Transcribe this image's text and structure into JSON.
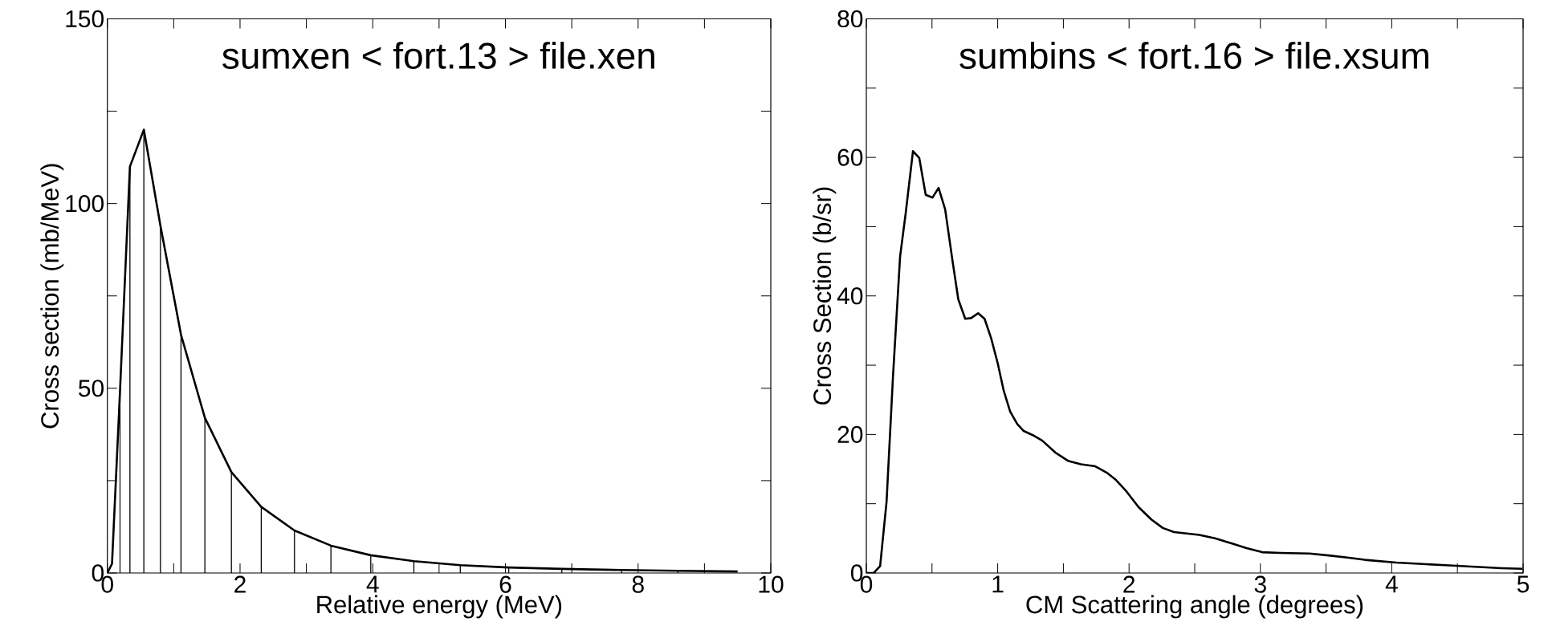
{
  "chart_data": [
    {
      "type": "line",
      "title": "sumxen < fort.13 > file.xen",
      "xlabel": "Relative energy (MeV)",
      "ylabel": "Cross section (mb/MeV)",
      "color": "#000000",
      "x": [
        0,
        0.07,
        0.19,
        0.34,
        0.55,
        0.8,
        1.11,
        1.47,
        1.87,
        2.32,
        2.82,
        3.37,
        3.97,
        4.62,
        5.32,
        6.05,
        6.85,
        7.75,
        8.6,
        9.5
      ],
      "series": [
        {
          "type": "line",
          "values": [
            0,
            2.5,
            49,
            110,
            120,
            94,
            64.5,
            42,
            27.3,
            17.9,
            11.5,
            7.4,
            4.8,
            3.2,
            2.1,
            1.5,
            1.1,
            0.8,
            0.6,
            0.4
          ]
        },
        {
          "type": "bar",
          "values": [
            null,
            null,
            49,
            110,
            120,
            94,
            64.5,
            42,
            27.3,
            17.9,
            11.5,
            7.4,
            4.8,
            3.2,
            2.1,
            1.5,
            1.1,
            0.8,
            0.6,
            null
          ]
        }
      ],
      "xlim": [
        0,
        10
      ],
      "ylim": [
        0,
        150
      ],
      "xticks": [
        0,
        {
          "value": 1,
          "label": null
        },
        2,
        {
          "value": 3,
          "label": null
        },
        4,
        {
          "value": 5,
          "label": null
        },
        6,
        {
          "value": 7,
          "label": null
        },
        8,
        {
          "value": 9,
          "label": null
        },
        10
      ],
      "yticks": [
        0,
        {
          "value": 25,
          "label": null
        },
        50,
        {
          "value": 75,
          "label": null
        },
        100,
        {
          "value": 125,
          "label": null
        },
        150
      ]
    },
    {
      "type": "line",
      "title": "sumbins < fort.16 > file.xsum",
      "xlabel": "CM Scattering angle (degrees)",
      "ylabel": "Cross Section (b/sr)",
      "color": "#000000",
      "x": [
        0,
        0.056,
        0.105,
        0.154,
        0.203,
        0.257,
        0.3,
        0.355,
        0.403,
        0.452,
        0.504,
        0.55,
        0.6,
        0.655,
        0.7,
        0.753,
        0.797,
        0.851,
        0.9,
        0.95,
        1.0,
        1.046,
        1.095,
        1.149,
        1.198,
        1.267,
        1.34,
        1.438,
        1.535,
        1.633,
        1.743,
        1.829,
        1.902,
        1.975,
        2.073,
        2.171,
        2.257,
        2.342,
        2.534,
        2.654,
        2.794,
        2.894,
        3.014,
        3.154,
        3.374,
        3.534,
        3.674,
        3.794,
        4.034,
        4.234,
        4.434,
        4.634,
        4.834,
        4.994
      ],
      "values": [
        0,
        0,
        1.0,
        10.3,
        28.4,
        45.7,
        52,
        60.9,
        59.9,
        54.6,
        54.2,
        55.6,
        52.5,
        45.2,
        39.5,
        36.7,
        36.8,
        37.5,
        36.7,
        33.9,
        30.3,
        26.3,
        23.3,
        21.5,
        20.5,
        19.9,
        19.1,
        17.4,
        16.2,
        15.7,
        15.4,
        14.5,
        13.4,
        11.9,
        9.5,
        7.7,
        6.5,
        5.9,
        5.5,
        5.0,
        4.2,
        3.6,
        3.0,
        2.9,
        2.8,
        2.5,
        2.2,
        1.9,
        1.5,
        1.3,
        1.1,
        0.9,
        0.7,
        0.6
      ],
      "xlim": [
        0,
        5
      ],
      "ylim": [
        0,
        80
      ],
      "xticks": [
        0,
        {
          "value": 0.5,
          "label": null
        },
        1,
        {
          "value": 1.5,
          "label": null
        },
        2,
        {
          "value": 2.5,
          "label": null
        },
        3,
        {
          "value": 3.5,
          "label": null
        },
        4,
        {
          "value": 4.5,
          "label": null
        },
        5
      ],
      "yticks": [
        0,
        {
          "value": 10,
          "label": null
        },
        20,
        {
          "value": 30,
          "label": null
        },
        40,
        {
          "value": 50,
          "label": null
        },
        60,
        {
          "value": 70,
          "label": null
        },
        80
      ]
    }
  ]
}
